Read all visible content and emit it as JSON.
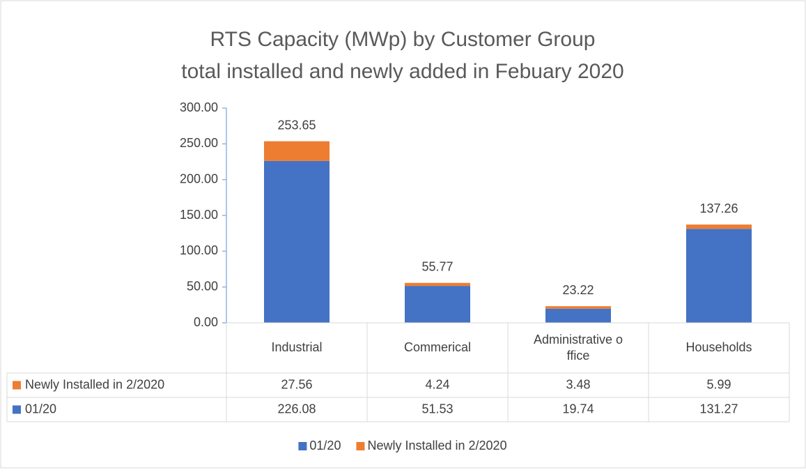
{
  "chart_data": {
    "type": "stacked_bar",
    "title": [
      "RTS Capacity (MWp) by Customer Group",
      "total installed and newly added in Febuary 2020"
    ],
    "categories": [
      "Industrial",
      "Commerical",
      "Administrative office",
      "Households"
    ],
    "series": [
      {
        "name": "01/20",
        "color": "#4472c4",
        "values": [
          226.08,
          51.53,
          19.74,
          131.27
        ]
      },
      {
        "name": "Newly Installed in 2/2020",
        "color": "#ed7d31",
        "values": [
          27.56,
          4.24,
          3.48,
          5.99
        ]
      }
    ],
    "totals": [
      253.65,
      55.77,
      23.22,
      137.26
    ],
    "ylim": [
      0,
      300
    ],
    "yticks": [
      {
        "value": 0,
        "label": "0.00"
      },
      {
        "value": 50,
        "label": "50.00"
      },
      {
        "value": 100,
        "label": "100.00"
      },
      {
        "value": 150,
        "label": "150.00"
      },
      {
        "value": 200,
        "label": "200.00"
      },
      {
        "value": 250,
        "label": "250.00"
      },
      {
        "value": 300,
        "label": "300.00"
      }
    ],
    "legend": "bottom",
    "data_table": true
  }
}
